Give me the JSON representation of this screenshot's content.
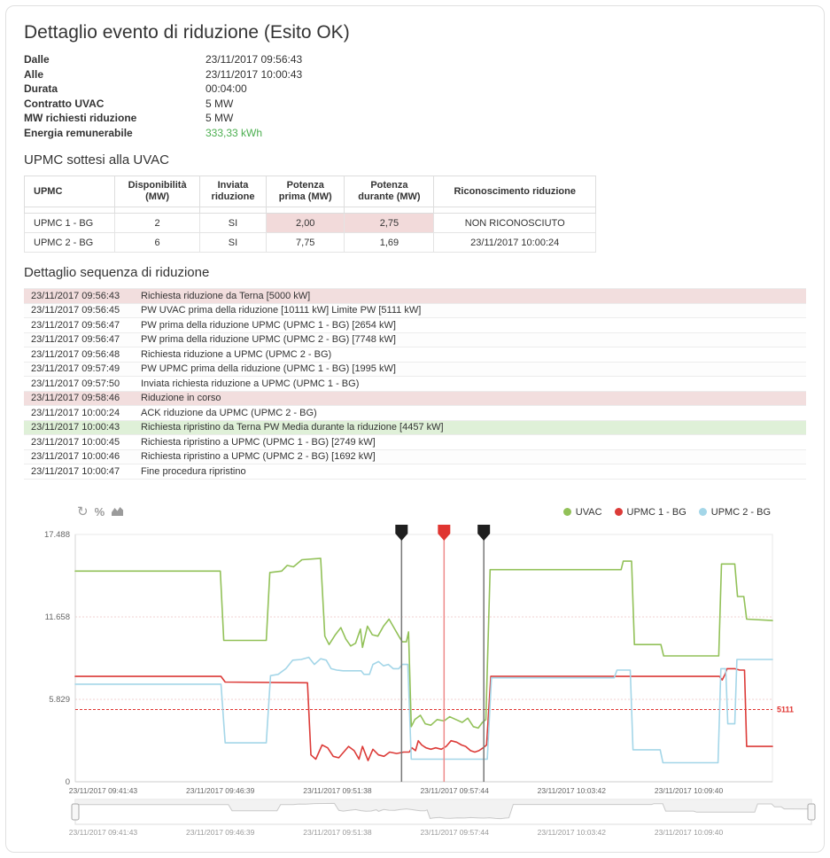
{
  "header": {
    "title": "Dettaglio evento di riduzione (Esito OK)",
    "fields": [
      {
        "label": "Dalle",
        "value": "23/11/2017 09:56:43"
      },
      {
        "label": "Alle",
        "value": "23/11/2017 10:00:43"
      },
      {
        "label": "Durata",
        "value": "00:04:00"
      },
      {
        "label": "Contratto UVAC",
        "value": "5 MW"
      },
      {
        "label": "MW richiesti riduzione",
        "value": "5 MW"
      },
      {
        "label": "Energia remunerabile",
        "value": "333,33 kWh",
        "color": "#4caf50"
      }
    ]
  },
  "upmc_section": {
    "title": "UPMC sottesi alla UVAC",
    "columns": [
      [
        "UPMC"
      ],
      [
        "Disponibilità",
        "(MW)"
      ],
      [
        "Inviata",
        "riduzione"
      ],
      [
        "Potenza",
        "prima (MW)"
      ],
      [
        "Potenza",
        "durante (MW)"
      ],
      [
        "Riconoscimento riduzione"
      ]
    ],
    "rows": [
      {
        "cells": [
          "UPMC 1 - BG",
          "2",
          "SI",
          "2,00",
          "2,75",
          "NON RICONOSCIUTO"
        ],
        "pink_cells": [
          3,
          4
        ]
      },
      {
        "cells": [
          "UPMC 2 - BG",
          "6",
          "SI",
          "7,75",
          "1,69",
          "23/11/2017 10:00:24"
        ],
        "pink_cells": []
      }
    ]
  },
  "sequence_section": {
    "title": "Dettaglio sequenza di riduzione",
    "rows": [
      {
        "time": "23/11/2017 09:56:43",
        "text": "Richiesta riduzione da Terna [5000 kW]",
        "highlight": "red"
      },
      {
        "time": "23/11/2017 09:56:45",
        "text": "PW UVAC prima della riduzione [10111 kW] Limite PW [5111 kW]",
        "highlight": ""
      },
      {
        "time": "23/11/2017 09:56:47",
        "text": "PW prima della riduzione UPMC (UPMC 1 - BG) [2654 kW]",
        "highlight": ""
      },
      {
        "time": "23/11/2017 09:56:47",
        "text": "PW prima della riduzione UPMC (UPMC 2 - BG) [7748 kW]",
        "highlight": ""
      },
      {
        "time": "23/11/2017 09:56:48",
        "text": "Richiesta riduzione a UPMC (UPMC 2 - BG)",
        "highlight": ""
      },
      {
        "time": "23/11/2017 09:57:49",
        "text": "PW UPMC prima della riduzione (UPMC 1 - BG) [1995 kW]",
        "highlight": ""
      },
      {
        "time": "23/11/2017 09:57:50",
        "text": "Inviata richiesta riduzione a UPMC (UPMC 1 - BG)",
        "highlight": ""
      },
      {
        "time": "23/11/2017 09:58:46",
        "text": "Riduzione in corso",
        "highlight": "red"
      },
      {
        "time": "23/11/2017 10:00:24",
        "text": "ACK riduzione da UPMC (UPMC 2 - BG)",
        "highlight": ""
      },
      {
        "time": "23/11/2017 10:00:43",
        "text": "Richiesta ripristino da Terna PW Media durante la riduzione [4457 kW]",
        "highlight": "green"
      },
      {
        "time": "23/11/2017 10:00:45",
        "text": "Richiesta ripristino a UPMC (UPMC 1 - BG) [2749 kW]",
        "highlight": ""
      },
      {
        "time": "23/11/2017 10:00:46",
        "text": "Richiesta ripristino a UPMC (UPMC 2 - BG) [1692 kW]",
        "highlight": ""
      },
      {
        "time": "23/11/2017 10:00:47",
        "text": "Fine procedura ripristino",
        "highlight": ""
      }
    ]
  },
  "chart_data": {
    "type": "line",
    "toolbar_icons": [
      "refresh-icon",
      "percent-icon",
      "area-chart-icon"
    ],
    "y_axis": {
      "max": 17.488,
      "ticks": [
        {
          "label": "0",
          "value": 0
        },
        {
          "label": "5.829",
          "value": 5.829
        },
        {
          "label": "11.658",
          "value": 11.658
        },
        {
          "label": "17.488",
          "value": 17.488
        }
      ],
      "grid_ticks": [
        5.829,
        11.658
      ]
    },
    "x_axis": {
      "labels": [
        "23/11/2017 09:41:43",
        "23/11/2017 09:46:39",
        "23/11/2017 09:51:38",
        "23/11/2017 09:57:44",
        "23/11/2017 10:03:42",
        "23/11/2017 10:09:40"
      ],
      "tick_pct": [
        4.0,
        20.8,
        37.6,
        54.4,
        71.2,
        88.0
      ]
    },
    "plot_line": {
      "value": 5.111,
      "label": "5111",
      "color": "#e03531"
    },
    "event_markers": [
      {
        "x_pct": 46.8,
        "flag_color": "#1f1f1f",
        "line_color": "#777777"
      },
      {
        "x_pct": 52.9,
        "flag_color": "#e03531",
        "line_color": "#ee8a8a"
      },
      {
        "x_pct": 58.6,
        "flag_color": "#1f1f1f",
        "line_color": "#777777"
      }
    ],
    "series": [
      {
        "name": "UVAC",
        "color": "#92c158",
        "points": [
          [
            0,
            14.9
          ],
          [
            20.8,
            14.9
          ],
          [
            21.3,
            10.0
          ],
          [
            27.4,
            10.0
          ],
          [
            27.9,
            14.8
          ],
          [
            29.6,
            14.9
          ],
          [
            30.4,
            15.3
          ],
          [
            31.3,
            15.2
          ],
          [
            32.5,
            15.7
          ],
          [
            35.2,
            15.8
          ],
          [
            35.8,
            10.3
          ],
          [
            36.4,
            9.7
          ],
          [
            37.3,
            10.4
          ],
          [
            38.1,
            10.9
          ],
          [
            38.8,
            10.1
          ],
          [
            39.5,
            9.6
          ],
          [
            40.2,
            9.8
          ],
          [
            40.9,
            10.8
          ],
          [
            41.2,
            9.5
          ],
          [
            41.9,
            11.0
          ],
          [
            42.6,
            10.4
          ],
          [
            43.4,
            10.3
          ],
          [
            44.2,
            11.0
          ],
          [
            45.0,
            11.5
          ],
          [
            45.7,
            10.9
          ],
          [
            46.4,
            10.3
          ],
          [
            46.9,
            9.9
          ],
          [
            47.5,
            9.9
          ],
          [
            47.8,
            10.6
          ],
          [
            48.2,
            3.9
          ],
          [
            48.7,
            4.4
          ],
          [
            49.5,
            4.7
          ],
          [
            50.2,
            4.1
          ],
          [
            51.0,
            4.0
          ],
          [
            51.9,
            4.4
          ],
          [
            52.9,
            4.3
          ],
          [
            53.7,
            4.6
          ],
          [
            54.6,
            4.4
          ],
          [
            55.5,
            4.2
          ],
          [
            56.3,
            4.5
          ],
          [
            57.1,
            3.9
          ],
          [
            57.8,
            3.8
          ],
          [
            58.4,
            4.2
          ],
          [
            58.9,
            4.4
          ],
          [
            59.5,
            15.0
          ],
          [
            78.3,
            15.0
          ],
          [
            78.6,
            15.6
          ],
          [
            79.8,
            15.6
          ],
          [
            80.2,
            9.7
          ],
          [
            84.0,
            9.7
          ],
          [
            84.4,
            8.9
          ],
          [
            92.3,
            8.9
          ],
          [
            92.7,
            15.4
          ],
          [
            94.6,
            15.4
          ],
          [
            95.0,
            13.1
          ],
          [
            95.9,
            13.1
          ],
          [
            96.3,
            11.5
          ],
          [
            100,
            11.4
          ]
        ]
      },
      {
        "name": "UPMC 1 - BG",
        "color": "#dc3b38",
        "points": [
          [
            0,
            7.45
          ],
          [
            20.9,
            7.45
          ],
          [
            21.5,
            7.05
          ],
          [
            33.3,
            7.0
          ],
          [
            33.8,
            1.9
          ],
          [
            34.5,
            1.6
          ],
          [
            35.4,
            2.6
          ],
          [
            36.2,
            2.4
          ],
          [
            37.0,
            1.8
          ],
          [
            37.8,
            1.7
          ],
          [
            38.5,
            2.1
          ],
          [
            39.2,
            2.5
          ],
          [
            40.0,
            2.2
          ],
          [
            40.7,
            1.6
          ],
          [
            41.2,
            2.5
          ],
          [
            42.0,
            1.5
          ],
          [
            42.7,
            2.3
          ],
          [
            43.5,
            1.9
          ],
          [
            44.3,
            1.8
          ],
          [
            45.1,
            2.1
          ],
          [
            46.1,
            2.0
          ],
          [
            47.1,
            2.1
          ],
          [
            47.9,
            2.1
          ],
          [
            48.3,
            2.4
          ],
          [
            48.8,
            2.2
          ],
          [
            49.2,
            2.9
          ],
          [
            49.7,
            2.6
          ],
          [
            50.3,
            2.4
          ],
          [
            51.0,
            2.3
          ],
          [
            51.7,
            2.4
          ],
          [
            52.5,
            2.3
          ],
          [
            53.2,
            2.5
          ],
          [
            53.9,
            2.9
          ],
          [
            54.7,
            2.8
          ],
          [
            55.4,
            2.6
          ],
          [
            56.0,
            2.5
          ],
          [
            56.7,
            2.2
          ],
          [
            57.3,
            2.1
          ],
          [
            57.9,
            2.2
          ],
          [
            58.5,
            2.4
          ],
          [
            59.0,
            2.6
          ],
          [
            59.6,
            7.45
          ],
          [
            92.4,
            7.45
          ],
          [
            92.8,
            7.2
          ],
          [
            93.2,
            7.6
          ],
          [
            93.5,
            8.0
          ],
          [
            94.6,
            8.0
          ],
          [
            95.3,
            7.9
          ],
          [
            96.0,
            7.9
          ],
          [
            96.3,
            2.5
          ],
          [
            100,
            2.5
          ]
        ]
      },
      {
        "name": "UPMC 2 - BG",
        "color": "#a4d6e8",
        "points": [
          [
            0,
            6.9
          ],
          [
            20.9,
            6.9
          ],
          [
            21.5,
            2.75
          ],
          [
            27.4,
            2.75
          ],
          [
            28.0,
            7.5
          ],
          [
            29.1,
            7.6
          ],
          [
            30.2,
            8.0
          ],
          [
            31.2,
            8.6
          ],
          [
            32.4,
            8.65
          ],
          [
            33.5,
            8.8
          ],
          [
            34.3,
            8.3
          ],
          [
            35.2,
            8.7
          ],
          [
            36.0,
            8.6
          ],
          [
            36.7,
            8.0
          ],
          [
            37.5,
            7.9
          ],
          [
            38.4,
            7.85
          ],
          [
            41.0,
            7.85
          ],
          [
            41.4,
            7.6
          ],
          [
            42.2,
            7.6
          ],
          [
            42.7,
            8.3
          ],
          [
            43.5,
            8.5
          ],
          [
            44.2,
            8.2
          ],
          [
            44.9,
            8.3
          ],
          [
            45.6,
            8.0
          ],
          [
            46.4,
            8.0
          ],
          [
            46.9,
            8.3
          ],
          [
            47.7,
            8.3
          ],
          [
            48.2,
            1.6
          ],
          [
            59.1,
            1.6
          ],
          [
            59.7,
            7.35
          ],
          [
            77.3,
            7.35
          ],
          [
            77.7,
            7.9
          ],
          [
            79.6,
            7.9
          ],
          [
            80.0,
            2.26
          ],
          [
            83.9,
            2.26
          ],
          [
            84.3,
            1.35
          ],
          [
            92.2,
            1.35
          ],
          [
            92.6,
            8.0
          ],
          [
            93.3,
            8.0
          ],
          [
            93.6,
            4.1
          ],
          [
            94.6,
            4.1
          ],
          [
            94.9,
            8.65
          ],
          [
            100,
            8.65
          ]
        ]
      }
    ],
    "navigator": {
      "labels_same_as_x_axis": true
    }
  }
}
